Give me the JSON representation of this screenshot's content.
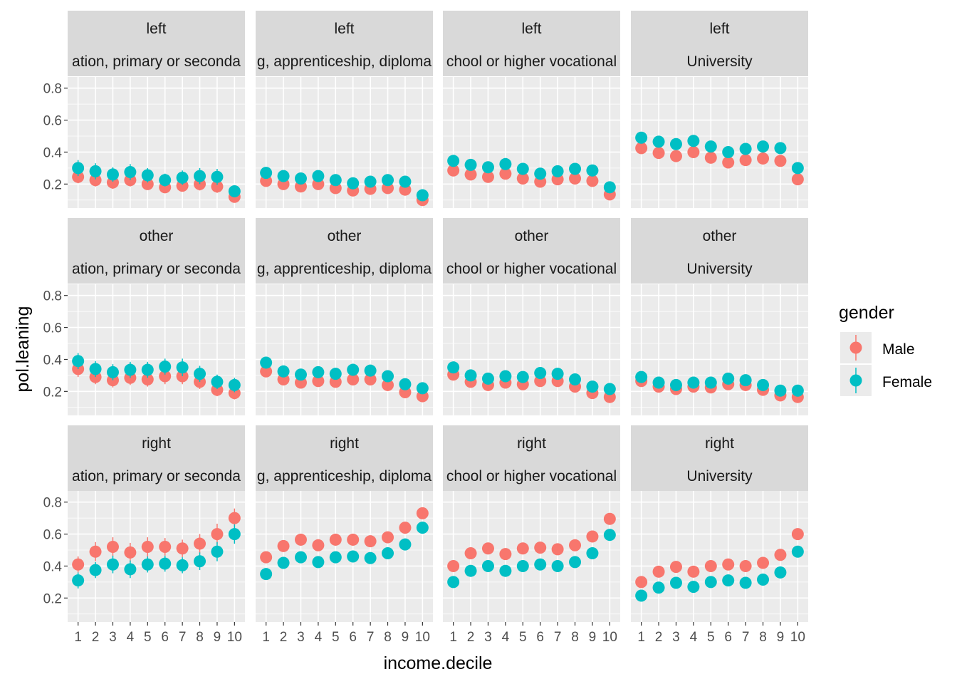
{
  "chart_data": {
    "type": "scatter",
    "subtype": "pointrange-facet-grid",
    "xlabel": "income.decile",
    "ylabel": "pol.leaning",
    "x_ticks": [
      "1",
      "2",
      "3",
      "4",
      "5",
      "6",
      "7",
      "8",
      "9",
      "10"
    ],
    "y_ticks": [
      "0.2",
      "0.4",
      "0.6",
      "0.8"
    ],
    "ylim": [
      0.05,
      0.87
    ],
    "xlim": [
      0.4,
      10.6
    ],
    "grid": true,
    "legend": {
      "title": "gender",
      "placement": "right",
      "entries": [
        {
          "name": "Male",
          "color": "#F8766D"
        },
        {
          "name": "Female",
          "color": "#00BFC4"
        }
      ]
    },
    "row_labels": [
      "left",
      "other",
      "right"
    ],
    "col_labels": [
      "ation, primary or seconda",
      "g, apprenticeship, diploma",
      "chool or higher vocational",
      "University"
    ],
    "panels": [
      {
        "row": "left",
        "col": 0,
        "series": [
          {
            "name": "Male",
            "y": [
              0.245,
              0.225,
              0.21,
              0.225,
              0.2,
              0.18,
              0.19,
              0.2,
              0.185,
              0.12
            ],
            "err": [
              0.04,
              0.04,
              0.04,
              0.04,
              0.035,
              0.035,
              0.035,
              0.04,
              0.04,
              0.03
            ]
          },
          {
            "name": "Female",
            "y": [
              0.3,
              0.28,
              0.26,
              0.275,
              0.255,
              0.225,
              0.24,
              0.25,
              0.245,
              0.155
            ],
            "err": [
              0.05,
              0.05,
              0.045,
              0.05,
              0.045,
              0.04,
              0.045,
              0.05,
              0.05,
              0.035
            ]
          }
        ]
      },
      {
        "row": "left",
        "col": 1,
        "series": [
          {
            "name": "Male",
            "y": [
              0.22,
              0.2,
              0.185,
              0.2,
              0.175,
              0.16,
              0.17,
              0.175,
              0.165,
              0.1
            ],
            "err": [
              0.025,
              0.02,
              0.02,
              0.02,
              0.02,
              0.02,
              0.02,
              0.02,
              0.02,
              0.02
            ]
          },
          {
            "name": "Female",
            "y": [
              0.27,
              0.25,
              0.235,
              0.25,
              0.225,
              0.205,
              0.215,
              0.225,
              0.215,
              0.13
            ],
            "err": [
              0.025,
              0.025,
              0.025,
              0.025,
              0.025,
              0.025,
              0.025,
              0.025,
              0.025,
              0.02
            ]
          }
        ]
      },
      {
        "row": "left",
        "col": 2,
        "series": [
          {
            "name": "Male",
            "y": [
              0.285,
              0.26,
              0.245,
              0.265,
              0.235,
              0.215,
              0.23,
              0.235,
              0.22,
              0.135
            ],
            "err": [
              0.03,
              0.03,
              0.03,
              0.03,
              0.03,
              0.03,
              0.03,
              0.03,
              0.03,
              0.025
            ]
          },
          {
            "name": "Female",
            "y": [
              0.345,
              0.32,
              0.305,
              0.325,
              0.295,
              0.265,
              0.28,
              0.295,
              0.285,
              0.18
            ],
            "err": [
              0.035,
              0.035,
              0.035,
              0.035,
              0.035,
              0.035,
              0.035,
              0.035,
              0.035,
              0.03
            ]
          }
        ]
      },
      {
        "row": "left",
        "col": 3,
        "series": [
          {
            "name": "Male",
            "y": [
              0.425,
              0.395,
              0.375,
              0.4,
              0.365,
              0.335,
              0.35,
              0.36,
              0.345,
              0.23
            ],
            "err": [
              0.035,
              0.035,
              0.035,
              0.035,
              0.035,
              0.035,
              0.035,
              0.035,
              0.035,
              0.03
            ]
          },
          {
            "name": "Female",
            "y": [
              0.49,
              0.465,
              0.45,
              0.47,
              0.435,
              0.4,
              0.42,
              0.435,
              0.425,
              0.3
            ],
            "err": [
              0.035,
              0.035,
              0.035,
              0.035,
              0.035,
              0.035,
              0.035,
              0.035,
              0.035,
              0.03
            ]
          }
        ]
      },
      {
        "row": "other",
        "col": 0,
        "series": [
          {
            "name": "Male",
            "y": [
              0.34,
              0.29,
              0.27,
              0.285,
              0.275,
              0.295,
              0.295,
              0.26,
              0.21,
              0.19
            ],
            "err": [
              0.05,
              0.045,
              0.045,
              0.045,
              0.045,
              0.05,
              0.05,
              0.045,
              0.04,
              0.04
            ]
          },
          {
            "name": "Female",
            "y": [
              0.39,
              0.34,
              0.32,
              0.335,
              0.335,
              0.355,
              0.35,
              0.31,
              0.26,
              0.24
            ],
            "err": [
              0.05,
              0.05,
              0.05,
              0.05,
              0.05,
              0.05,
              0.055,
              0.05,
              0.045,
              0.045
            ]
          }
        ]
      },
      {
        "row": "other",
        "col": 1,
        "series": [
          {
            "name": "Male",
            "y": [
              0.325,
              0.275,
              0.255,
              0.265,
              0.26,
              0.275,
              0.275,
              0.24,
              0.195,
              0.17
            ],
            "err": [
              0.025,
              0.02,
              0.02,
              0.02,
              0.02,
              0.02,
              0.02,
              0.02,
              0.02,
              0.02
            ]
          },
          {
            "name": "Female",
            "y": [
              0.38,
              0.325,
              0.305,
              0.32,
              0.31,
              0.335,
              0.33,
              0.295,
              0.245,
              0.22
            ],
            "err": [
              0.025,
              0.025,
              0.025,
              0.025,
              0.025,
              0.025,
              0.025,
              0.025,
              0.025,
              0.02
            ]
          }
        ]
      },
      {
        "row": "other",
        "col": 2,
        "series": [
          {
            "name": "Male",
            "y": [
              0.305,
              0.26,
              0.24,
              0.255,
              0.245,
              0.265,
              0.265,
              0.23,
              0.19,
              0.165
            ],
            "err": [
              0.03,
              0.025,
              0.025,
              0.025,
              0.025,
              0.025,
              0.025,
              0.025,
              0.025,
              0.02
            ]
          },
          {
            "name": "Female",
            "y": [
              0.35,
              0.3,
              0.28,
              0.295,
              0.29,
              0.315,
              0.31,
              0.275,
              0.23,
              0.215
            ],
            "err": [
              0.03,
              0.03,
              0.03,
              0.03,
              0.03,
              0.03,
              0.03,
              0.03,
              0.025,
              0.025
            ]
          }
        ]
      },
      {
        "row": "other",
        "col": 3,
        "series": [
          {
            "name": "Male",
            "y": [
              0.265,
              0.23,
              0.215,
              0.23,
              0.225,
              0.245,
              0.24,
              0.21,
              0.175,
              0.165
            ],
            "err": [
              0.025,
              0.02,
              0.02,
              0.02,
              0.02,
              0.02,
              0.02,
              0.02,
              0.02,
              0.02
            ]
          },
          {
            "name": "Female",
            "y": [
              0.29,
              0.255,
              0.24,
              0.255,
              0.255,
              0.28,
              0.27,
              0.24,
              0.205,
              0.205
            ],
            "err": [
              0.025,
              0.025,
              0.025,
              0.025,
              0.025,
              0.025,
              0.025,
              0.025,
              0.02,
              0.02
            ]
          }
        ]
      },
      {
        "row": "right",
        "col": 0,
        "series": [
          {
            "name": "Male",
            "y": [
              0.41,
              0.49,
              0.52,
              0.485,
              0.52,
              0.52,
              0.51,
              0.54,
              0.6,
              0.7
            ],
            "err": [
              0.05,
              0.06,
              0.06,
              0.06,
              0.06,
              0.055,
              0.055,
              0.06,
              0.065,
              0.06
            ]
          },
          {
            "name": "Female",
            "y": [
              0.31,
              0.375,
              0.41,
              0.38,
              0.41,
              0.415,
              0.405,
              0.43,
              0.49,
              0.6
            ],
            "err": [
              0.05,
              0.05,
              0.055,
              0.055,
              0.05,
              0.05,
              0.05,
              0.055,
              0.06,
              0.06
            ]
          }
        ]
      },
      {
        "row": "right",
        "col": 1,
        "series": [
          {
            "name": "Male",
            "y": [
              0.455,
              0.525,
              0.565,
              0.53,
              0.565,
              0.565,
              0.555,
              0.58,
              0.64,
              0.73
            ],
            "err": [
              0.025,
              0.025,
              0.025,
              0.025,
              0.025,
              0.025,
              0.025,
              0.025,
              0.025,
              0.025
            ]
          },
          {
            "name": "Female",
            "y": [
              0.35,
              0.42,
              0.455,
              0.425,
              0.455,
              0.46,
              0.45,
              0.48,
              0.535,
              0.64
            ],
            "err": [
              0.025,
              0.025,
              0.025,
              0.025,
              0.025,
              0.025,
              0.025,
              0.025,
              0.025,
              0.025
            ]
          }
        ]
      },
      {
        "row": "right",
        "col": 2,
        "series": [
          {
            "name": "Male",
            "y": [
              0.4,
              0.48,
              0.51,
              0.475,
              0.51,
              0.515,
              0.505,
              0.53,
              0.585,
              0.695
            ],
            "err": [
              0.03,
              0.03,
              0.03,
              0.03,
              0.03,
              0.03,
              0.03,
              0.03,
              0.03,
              0.03
            ]
          },
          {
            "name": "Female",
            "y": [
              0.3,
              0.37,
              0.4,
              0.37,
              0.4,
              0.41,
              0.4,
              0.425,
              0.48,
              0.595
            ],
            "err": [
              0.03,
              0.03,
              0.03,
              0.03,
              0.03,
              0.03,
              0.03,
              0.03,
              0.03,
              0.03
            ]
          }
        ]
      },
      {
        "row": "right",
        "col": 3,
        "series": [
          {
            "name": "Male",
            "y": [
              0.3,
              0.365,
              0.395,
              0.365,
              0.4,
              0.41,
              0.4,
              0.42,
              0.47,
              0.6
            ],
            "err": [
              0.025,
              0.025,
              0.025,
              0.025,
              0.025,
              0.025,
              0.025,
              0.025,
              0.025,
              0.025
            ]
          },
          {
            "name": "Female",
            "y": [
              0.215,
              0.265,
              0.295,
              0.27,
              0.3,
              0.31,
              0.295,
              0.315,
              0.36,
              0.49
            ],
            "err": [
              0.02,
              0.02,
              0.02,
              0.02,
              0.02,
              0.02,
              0.02,
              0.02,
              0.025,
              0.025
            ]
          }
        ]
      }
    ]
  }
}
